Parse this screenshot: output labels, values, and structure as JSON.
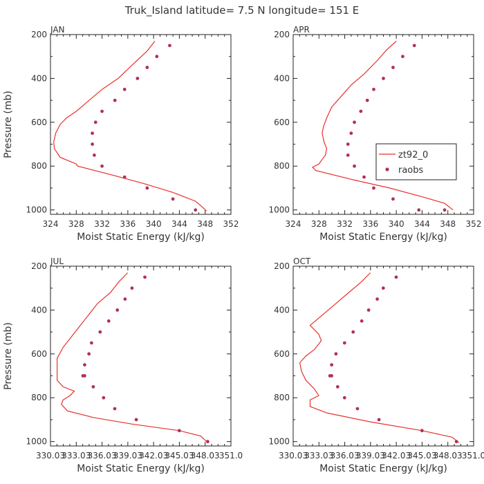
{
  "title": "Truk_Island  latitude= 7.5 N longitude= 151 E",
  "colors": {
    "model": "#e8302a",
    "obs": "#b03060",
    "axis": "#222222"
  },
  "legend": {
    "model_label": "zt92_0",
    "obs_label": "raobs"
  },
  "chart_data": [
    {
      "type": "line",
      "month": "JAN",
      "xlabel": "Moist Static Energy (kJ/kg)",
      "ylabel": "Pressure (mb)",
      "xlim": [
        324,
        352
      ],
      "xticks": [
        "324",
        "328",
        "332",
        "336",
        "340",
        "344",
        "348",
        "352"
      ],
      "ylim": [
        1020,
        200
      ],
      "yticks": [
        "200",
        "400",
        "600",
        "800",
        "1000"
      ],
      "series": [
        {
          "kind": "line",
          "x": [
            340.2,
            339.0,
            337.0,
            334.5,
            332.0,
            330.0,
            328.0,
            326.5,
            325.5,
            324.8,
            324.5,
            324.6,
            325.5,
            328.0,
            328.2,
            333.5,
            338.5,
            343.0,
            346.5,
            347.5,
            348.2
          ],
          "y": [
            230,
            275,
            330,
            400,
            450,
            500,
            550,
            580,
            610,
            650,
            690,
            720,
            760,
            790,
            800,
            840,
            880,
            920,
            960,
            985,
            1005
          ]
        },
        {
          "kind": "scatter",
          "x": [
            342.5,
            340.5,
            339.0,
            337.5,
            335.5,
            334.0,
            332.0,
            331.0,
            330.5,
            330.5,
            330.8,
            332.0,
            335.5,
            339.0,
            343.0,
            346.5
          ],
          "y": [
            250,
            300,
            350,
            400,
            450,
            500,
            550,
            600,
            650,
            700,
            750,
            800,
            850,
            900,
            950,
            1000
          ]
        }
      ]
    },
    {
      "type": "line",
      "month": "APR",
      "xlabel": "Moist Static Energy (kJ/kg)",
      "ylabel": "",
      "xlim": [
        324,
        352
      ],
      "xticks": [
        "324",
        "328",
        "332",
        "336",
        "340",
        "344",
        "348",
        "352"
      ],
      "ylim": [
        1020,
        200
      ],
      "yticks": [
        "200",
        "400",
        "600",
        "800",
        "1000"
      ],
      "series": [
        {
          "kind": "line",
          "x": [
            340.0,
            338.5,
            337.0,
            335.0,
            333.0,
            331.5,
            330.0,
            329.2,
            328.7,
            328.5,
            328.8,
            329.2,
            329.0,
            328.5,
            328.0,
            327.0,
            327.5,
            333.0,
            339.0,
            344.0,
            347.5,
            348.8
          ],
          "y": [
            230,
            270,
            320,
            380,
            430,
            480,
            530,
            580,
            620,
            650,
            690,
            720,
            750,
            770,
            790,
            805,
            820,
            860,
            900,
            940,
            970,
            1000
          ]
        },
        {
          "kind": "scatter",
          "x": [
            342.8,
            341.0,
            339.5,
            338.0,
            336.5,
            335.5,
            334.5,
            333.5,
            333.0,
            332.5,
            332.5,
            333.5,
            335.0,
            336.5,
            339.5,
            343.5,
            347.5
          ],
          "y": [
            250,
            300,
            350,
            400,
            450,
            500,
            550,
            600,
            650,
            700,
            750,
            800,
            850,
            900,
            950,
            1000,
            1000
          ]
        }
      ]
    },
    {
      "type": "line",
      "month": "JUL",
      "xlabel": "Moist Static Energy (kJ/kg)",
      "ylabel": "Pressure (mb)",
      "xlim": [
        330.03,
        351.0
      ],
      "xticks": [
        "330.03",
        "333.03",
        "336.03",
        "339.03",
        "342.03",
        "345.03",
        "348.03",
        "351.0"
      ],
      "ylim": [
        1020,
        200
      ],
      "yticks": [
        "200",
        "400",
        "600",
        "800",
        "1000"
      ],
      "series": [
        {
          "kind": "line",
          "x": [
            339.0,
            338.0,
            337.0,
            335.5,
            334.5,
            333.5,
            332.5,
            331.5,
            330.8,
            330.8,
            330.8,
            331.5,
            332.8,
            332.3,
            331.5,
            331.3,
            332.0,
            335.0,
            339.5,
            345.0,
            347.5,
            348.3
          ],
          "y": [
            230,
            270,
            320,
            370,
            420,
            470,
            520,
            570,
            620,
            670,
            720,
            750,
            770,
            790,
            810,
            830,
            860,
            890,
            920,
            950,
            975,
            1005
          ]
        },
        {
          "kind": "scatter",
          "x": [
            341.0,
            339.5,
            338.7,
            337.8,
            336.8,
            335.8,
            334.8,
            334.5,
            334.0,
            333.8,
            334.0,
            335.0,
            336.2,
            337.5,
            340.0,
            345.0,
            348.3
          ],
          "y": [
            250,
            300,
            350,
            400,
            450,
            500,
            550,
            600,
            650,
            700,
            700,
            750,
            800,
            850,
            900,
            950,
            1000
          ]
        }
      ]
    },
    {
      "type": "line",
      "month": "OCT",
      "xlabel": "Moist Static Energy (kJ/kg)",
      "ylabel": "",
      "xlim": [
        330.03,
        351.0
      ],
      "xticks": [
        "330.03",
        "333.03",
        "336.03",
        "339.03",
        "342.03",
        "345.03",
        "348.03",
        "351.0"
      ],
      "ylim": [
        1020,
        200
      ],
      "yticks": [
        "200",
        "400",
        "600",
        "800",
        "1000"
      ],
      "series": [
        {
          "kind": "line",
          "x": [
            339.0,
            338.0,
            336.5,
            335.0,
            333.5,
            332.0,
            333.0,
            333.3,
            332.5,
            331.5,
            330.8,
            331.0,
            331.5,
            332.5,
            333.0,
            332.0,
            332.0,
            334.0,
            339.0,
            345.0,
            348.5,
            349.3
          ],
          "y": [
            230,
            270,
            320,
            370,
            420,
            470,
            510,
            540,
            580,
            610,
            640,
            680,
            720,
            760,
            790,
            810,
            840,
            870,
            910,
            950,
            980,
            1005
          ]
        },
        {
          "kind": "scatter",
          "x": [
            342.0,
            340.5,
            339.8,
            338.8,
            338.0,
            337.0,
            336.0,
            335.0,
            334.5,
            334.3,
            334.5,
            335.2,
            336.0,
            337.5,
            340.0,
            345.0,
            349.0
          ],
          "y": [
            250,
            300,
            350,
            400,
            450,
            500,
            550,
            600,
            650,
            700,
            700,
            750,
            800,
            850,
            900,
            950,
            1000
          ]
        }
      ]
    }
  ]
}
